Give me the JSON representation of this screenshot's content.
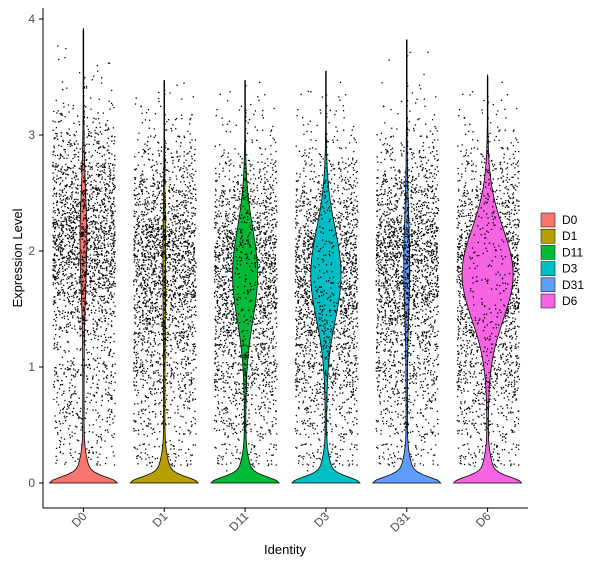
{
  "chart_data": {
    "type": "violin",
    "xlabel": "Identity",
    "ylabel": "Expression Level",
    "ylim": [
      -0.2,
      4.1
    ],
    "yticks": [
      0,
      1,
      2,
      3,
      4
    ],
    "grid": false,
    "legend_position": "right",
    "jitter_points": true,
    "categories": [
      "D0",
      "D1",
      "D11",
      "D3",
      "D31",
      "D6"
    ],
    "series": [
      {
        "name": "D0",
        "color": "#F8766D",
        "max": 3.92,
        "dropout_peak_density": 1.0,
        "upper_mode": 2.1,
        "upper_mode_width": 0.1
      },
      {
        "name": "D1",
        "color": "#B79F00",
        "max": 3.47,
        "dropout_peak_density": 1.0,
        "upper_mode": 1.9,
        "upper_mode_width": 0.02
      },
      {
        "name": "D11",
        "color": "#00BA38",
        "max": 3.47,
        "dropout_peak_density": 1.0,
        "upper_mode": 1.8,
        "upper_mode_width": 0.45
      },
      {
        "name": "D3",
        "color": "#00BFC4",
        "max": 3.55,
        "dropout_peak_density": 1.0,
        "upper_mode": 1.8,
        "upper_mode_width": 0.55
      },
      {
        "name": "D31",
        "color": "#619CFF",
        "max": 3.82,
        "dropout_peak_density": 1.0,
        "upper_mode": 1.9,
        "upper_mode_width": 0.08
      },
      {
        "name": "D6",
        "color": "#F564E3",
        "max": 3.52,
        "dropout_peak_density": 1.0,
        "upper_mode": 1.8,
        "upper_mode_width": 0.95
      }
    ]
  }
}
